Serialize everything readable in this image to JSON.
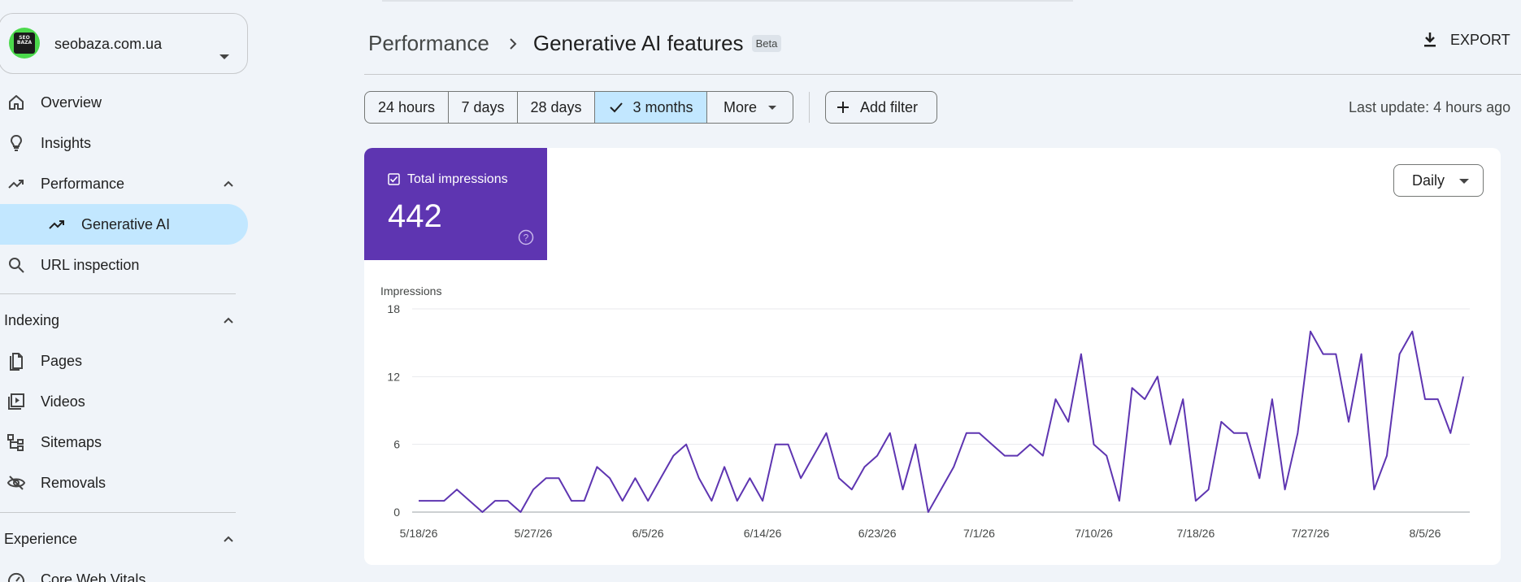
{
  "property": {
    "name": "seobaza.com.ua",
    "logo_text": "SEO BAZA"
  },
  "sidebar": {
    "items": [
      {
        "label": "Overview",
        "icon": "home-icon"
      },
      {
        "label": "Insights",
        "icon": "lightbulb-icon"
      },
      {
        "label": "Performance",
        "icon": "trending-up-icon"
      },
      {
        "label": "Generative AI",
        "icon": "trending-up-icon"
      },
      {
        "label": "URL inspection",
        "icon": "search-icon"
      }
    ],
    "sections": [
      {
        "label": "Indexing",
        "items": [
          {
            "label": "Pages",
            "icon": "pages-icon"
          },
          {
            "label": "Videos",
            "icon": "video-icon"
          },
          {
            "label": "Sitemaps",
            "icon": "sitemap-icon"
          },
          {
            "label": "Removals",
            "icon": "eye-off-icon"
          }
        ]
      },
      {
        "label": "Experience",
        "items": [
          {
            "label": "Core Web Vitals",
            "icon": "gauge-icon"
          }
        ]
      }
    ]
  },
  "header": {
    "breadcrumb_parent": "Performance",
    "title": "Generative AI features",
    "badge": "Beta",
    "export_label": "EXPORT"
  },
  "date_range": {
    "options": [
      "24 hours",
      "7 days",
      "28 days",
      "3 months",
      "More"
    ],
    "selected": "3 months"
  },
  "filter": {
    "add_label": "Add filter"
  },
  "last_update": "Last update: 4 hours ago",
  "metric": {
    "label": "Total impressions",
    "value": "442",
    "color": "#5e35b1"
  },
  "granularity": {
    "selected": "Daily"
  },
  "chart_data": {
    "type": "line",
    "ylabel": "Impressions",
    "ylim": [
      0,
      18
    ],
    "yticks": [
      0,
      6,
      12,
      18
    ],
    "x_start": "2026-05-18",
    "xtick_labels": [
      "5/18/26",
      "5/27/26",
      "6/5/26",
      "6/14/26",
      "6/23/26",
      "7/1/26",
      "7/10/26",
      "7/18/26",
      "7/27/26",
      "8/5/26"
    ],
    "series": [
      {
        "color": "#5e35b1",
        "values": [
          1,
          1,
          1,
          2,
          1,
          0,
          1,
          1,
          0,
          2,
          3,
          3,
          1,
          1,
          4,
          3,
          1,
          3,
          1,
          3,
          5,
          6,
          3,
          1,
          4,
          1,
          3,
          1,
          6,
          6,
          3,
          5,
          7,
          3,
          2,
          4,
          5,
          7,
          2,
          6,
          0,
          2,
          4,
          7,
          7,
          6,
          5,
          5,
          6,
          5,
          10,
          8,
          14,
          6,
          5,
          1,
          11,
          10,
          12,
          6,
          10,
          1,
          2,
          8,
          7,
          7,
          3,
          10,
          2,
          7,
          16,
          14,
          14,
          8,
          14,
          2,
          5,
          14,
          16,
          10,
          10,
          7,
          12
        ]
      }
    ]
  }
}
